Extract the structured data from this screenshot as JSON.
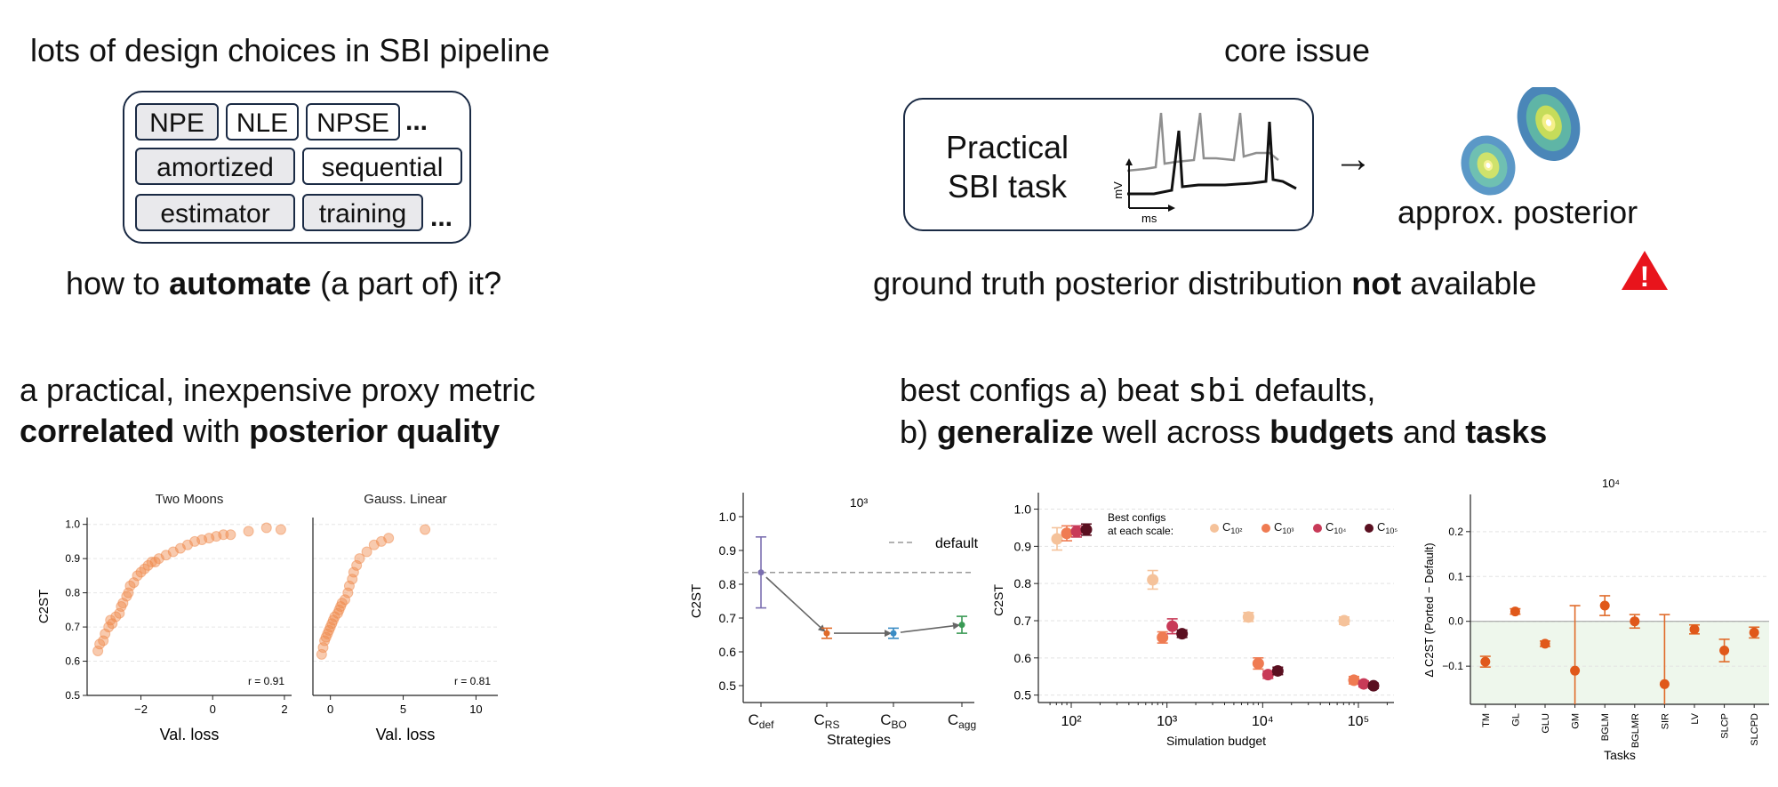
{
  "top_left": {
    "heading": "lots of design choices in SBI pipeline",
    "chips_row1": [
      "NPE",
      "NLE",
      "NPSE"
    ],
    "ellipsis1": "...",
    "chips_row2": [
      "amortized",
      "sequential"
    ],
    "chips_row3": [
      "estimator",
      "training"
    ],
    "ellipsis2": "...",
    "q_pre": "how to ",
    "q_bold": "automate",
    "q_post": " (a part of) it?"
  },
  "top_right": {
    "heading": "core issue",
    "task_line1": "Practical",
    "task_line2": "SBI task",
    "axis_y": "mV",
    "axis_x": "ms",
    "arrow": "→",
    "posterior_label": "approx. posterior",
    "gt_pre": "ground truth posterior distribution ",
    "gt_bold": "not",
    "gt_post": " available",
    "warn_symbol": "!"
  },
  "mid_left": {
    "line1": "a practical, inexpensive proxy metric",
    "line2_b1": "correlated",
    "line2_mid": " with ",
    "line2_b2": "posterior quality"
  },
  "mid_right": {
    "line1_pre": "best configs a) beat ",
    "line1_code": "sbi",
    "line1_post": " defaults,",
    "line2_pre": "b) ",
    "line2_b1": "generalize",
    "line2_mid": " well across ",
    "line2_b2": "budgets",
    "line2_and": " and ",
    "line2_b3": "tasks"
  },
  "chart_data": [
    {
      "type": "scatter",
      "title": "Two Moons",
      "xlabel": "Val. loss",
      "ylabel": "C2ST",
      "xlim": [
        -3.5,
        2.2
      ],
      "ylim": [
        0.5,
        1.02
      ],
      "xticks": [
        -2,
        0,
        2
      ],
      "yticks": [
        0.5,
        0.6,
        0.7,
        0.8,
        0.9,
        1.0
      ],
      "annotation": "r = 0.91",
      "points": [
        [
          -3.2,
          0.63
        ],
        [
          -3.15,
          0.65
        ],
        [
          -3.05,
          0.66
        ],
        [
          -3.0,
          0.68
        ],
        [
          -2.9,
          0.7
        ],
        [
          -2.85,
          0.72
        ],
        [
          -2.8,
          0.71
        ],
        [
          -2.7,
          0.73
        ],
        [
          -2.6,
          0.74
        ],
        [
          -2.55,
          0.76
        ],
        [
          -2.5,
          0.77
        ],
        [
          -2.4,
          0.79
        ],
        [
          -2.35,
          0.8
        ],
        [
          -2.3,
          0.82
        ],
        [
          -2.2,
          0.83
        ],
        [
          -2.1,
          0.85
        ],
        [
          -2.0,
          0.86
        ],
        [
          -1.9,
          0.87
        ],
        [
          -1.8,
          0.88
        ],
        [
          -1.7,
          0.89
        ],
        [
          -1.6,
          0.89
        ],
        [
          -1.5,
          0.9
        ],
        [
          -1.3,
          0.91
        ],
        [
          -1.1,
          0.92
        ],
        [
          -0.9,
          0.93
        ],
        [
          -0.7,
          0.94
        ],
        [
          -0.5,
          0.95
        ],
        [
          -0.3,
          0.955
        ],
        [
          -0.1,
          0.96
        ],
        [
          0.1,
          0.965
        ],
        [
          0.3,
          0.97
        ],
        [
          0.5,
          0.97
        ],
        [
          1.0,
          0.98
        ],
        [
          1.5,
          0.99
        ],
        [
          1.9,
          0.985
        ]
      ]
    },
    {
      "type": "scatter",
      "title": "Gauss. Linear",
      "xlabel": "Val. loss",
      "ylabel": "",
      "xlim": [
        -1.2,
        11.5
      ],
      "ylim": [
        0.5,
        1.02
      ],
      "xticks": [
        0,
        5,
        10
      ],
      "annotation": "r = 0.81",
      "points": [
        [
          -0.6,
          0.62
        ],
        [
          -0.5,
          0.64
        ],
        [
          -0.4,
          0.66
        ],
        [
          -0.3,
          0.67
        ],
        [
          -0.2,
          0.68
        ],
        [
          -0.1,
          0.69
        ],
        [
          0.0,
          0.7
        ],
        [
          0.1,
          0.71
        ],
        [
          0.2,
          0.72
        ],
        [
          0.3,
          0.73
        ],
        [
          0.5,
          0.74
        ],
        [
          0.6,
          0.75
        ],
        [
          0.7,
          0.76
        ],
        [
          0.8,
          0.77
        ],
        [
          1.0,
          0.78
        ],
        [
          1.2,
          0.8
        ],
        [
          1.3,
          0.82
        ],
        [
          1.5,
          0.84
        ],
        [
          1.6,
          0.86
        ],
        [
          1.8,
          0.88
        ],
        [
          2.0,
          0.9
        ],
        [
          2.5,
          0.92
        ],
        [
          3.0,
          0.94
        ],
        [
          3.5,
          0.95
        ],
        [
          4.0,
          0.96
        ],
        [
          6.5,
          0.985
        ]
      ]
    },
    {
      "type": "scatter",
      "title": "10³",
      "xlabel": "Strategies",
      "ylabel": "C2ST",
      "ylim": [
        0.45,
        1.05
      ],
      "yticks": [
        0.5,
        0.6,
        0.7,
        0.8,
        0.9,
        1.0
      ],
      "categories": [
        "C_def",
        "C_RS",
        "C_BO",
        "C_agg"
      ],
      "legend": "default",
      "default_value": 0.835,
      "points": [
        {
          "category": "C_def",
          "value": 0.835,
          "low": 0.73,
          "high": 0.94,
          "color": "#7b6fb0"
        },
        {
          "category": "C_RS",
          "value": 0.655,
          "low": 0.64,
          "high": 0.67,
          "color": "#e06b2a"
        },
        {
          "category": "C_BO",
          "value": 0.655,
          "low": 0.64,
          "high": 0.67,
          "color": "#3a8cc4"
        },
        {
          "category": "C_agg",
          "value": 0.68,
          "low": 0.655,
          "high": 0.705,
          "color": "#3a9a55"
        }
      ]
    },
    {
      "type": "scatter",
      "title": "",
      "xlabel": "Simulation budget",
      "ylabel": "C2ST",
      "ylim": [
        0.48,
        1.03
      ],
      "yticks": [
        0.5,
        0.6,
        0.7,
        0.8,
        0.9,
        1.0
      ],
      "xscale": "log",
      "xticks": [
        "10²",
        "10³",
        "10⁴",
        "10⁵"
      ],
      "legend_title": "Best configs\nat each scale:",
      "legend": [
        "C_10²",
        "C_10³",
        "C_10⁴",
        "C_10⁵"
      ],
      "series": [
        {
          "name": "C_10²",
          "color": "#f5c29a",
          "values": [
            [
              100,
              0.92,
              0.03
            ],
            [
              1000,
              0.81,
              0.025
            ],
            [
              10000,
              0.71,
              0.012
            ],
            [
              100000,
              0.7,
              0.01
            ]
          ]
        },
        {
          "name": "C_10³",
          "color": "#ef7b52",
          "values": [
            [
              100,
              0.935,
              0.02
            ],
            [
              1000,
              0.655,
              0.015
            ],
            [
              10000,
              0.585,
              0.015
            ],
            [
              100000,
              0.54,
              0.01
            ]
          ]
        },
        {
          "name": "C_10⁴",
          "color": "#c83a58",
          "values": [
            [
              100,
              0.94,
              0.015
            ],
            [
              1000,
              0.685,
              0.02
            ],
            [
              10000,
              0.555,
              0.01
            ],
            [
              100000,
              0.53,
              0.008
            ]
          ]
        },
        {
          "name": "C_10⁵",
          "color": "#5a0f20",
          "values": [
            [
              100,
              0.945,
              0.015
            ],
            [
              1000,
              0.665,
              0.01
            ],
            [
              10000,
              0.565,
              0.01
            ],
            [
              100000,
              0.525,
              0.007
            ]
          ]
        }
      ]
    },
    {
      "type": "scatter",
      "title": "10⁴",
      "xlabel": "Tasks",
      "ylabel": "Δ C2ST (Ported − Default)",
      "ylim": [
        -0.185,
        0.275
      ],
      "yticks": [
        -0.1,
        0.0,
        0.1,
        0.2
      ],
      "categories": [
        "TM",
        "GL",
        "GLU",
        "GM",
        "BGLM",
        "BGLMR",
        "SIR",
        "LV",
        "SLCP",
        "SLCPD"
      ],
      "points": [
        {
          "category": "TM",
          "value": -0.09,
          "err": 0.012
        },
        {
          "category": "GL",
          "value": 0.022,
          "err": 0.006
        },
        {
          "category": "GLU",
          "value": -0.05,
          "err": 0.006
        },
        {
          "category": "GM",
          "value": -0.11,
          "err": 0.145
        },
        {
          "category": "BGLM",
          "value": 0.035,
          "err": 0.022
        },
        {
          "category": "BGLMR",
          "value": 0.0,
          "err": 0.015
        },
        {
          "category": "SIR",
          "value": -0.14,
          "err": 0.155
        },
        {
          "category": "LV",
          "value": -0.018,
          "err": 0.01
        },
        {
          "category": "SLCP",
          "value": -0.065,
          "err": 0.025
        },
        {
          "category": "SLCPD",
          "value": -0.025,
          "err": 0.012
        }
      ]
    }
  ]
}
